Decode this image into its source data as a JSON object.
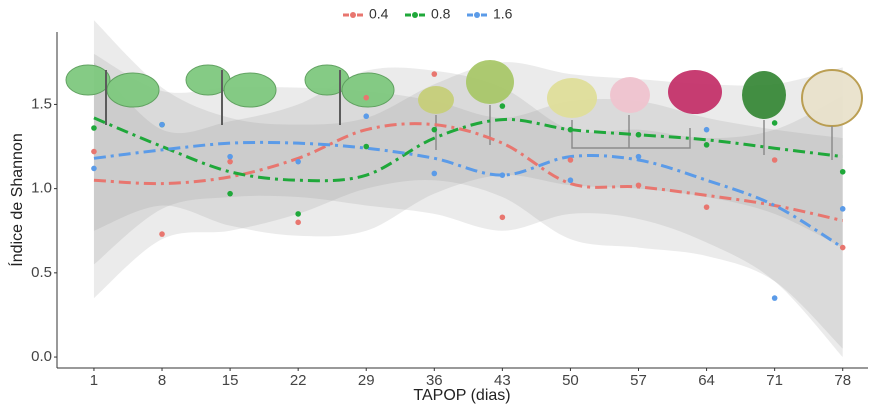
{
  "chart_data": {
    "type": "smooth-scatter",
    "x_label": "TAPOP (dias)",
    "y_label": "Índice de Shannon",
    "xlim": [
      -2.8,
      80.6
    ],
    "ylim": [
      -0.065,
      1.93
    ],
    "xticks": [
      1,
      8,
      15,
      22,
      29,
      36,
      43,
      50,
      57,
      64,
      71,
      78
    ],
    "yticks": [
      {
        "value": 0,
        "label": "0.0"
      },
      0.5,
      {
        "value": 1,
        "label": "1.0"
      },
      1.5
    ],
    "x": [
      1,
      8,
      15,
      22,
      29,
      36,
      43,
      50,
      57,
      64,
      71,
      78
    ],
    "series": [
      {
        "name": "0.4",
        "color": "#e8766f",
        "values": [
          1.22,
          0.73,
          1.16,
          0.8,
          1.54,
          1.68,
          0.83,
          1.17,
          1.02,
          0.89,
          1.17,
          0.65
        ],
        "fit": [
          1.05,
          1.03,
          1.07,
          1.18,
          1.35,
          1.38,
          1.27,
          1.03,
          1.01,
          0.96,
          0.9,
          0.81
        ],
        "lower": [
          0.35,
          0.7,
          0.75,
          0.85,
          1.0,
          1.05,
          0.95,
          0.7,
          0.65,
          0.6,
          0.45,
          0.05
        ],
        "upper": [
          1.75,
          1.35,
          1.4,
          1.5,
          1.7,
          1.7,
          1.6,
          1.35,
          1.35,
          1.3,
          1.35,
          1.55
        ]
      },
      {
        "name": "0.8",
        "color": "#1fa83a",
        "values": [
          1.36,
          1.38,
          0.97,
          0.85,
          1.25,
          1.35,
          1.49,
          1.35,
          1.32,
          1.26,
          1.39,
          1.1
        ],
        "fit": [
          1.42,
          1.25,
          1.1,
          1.05,
          1.08,
          1.3,
          1.41,
          1.35,
          1.32,
          1.29,
          1.24,
          1.19
        ],
        "lower": [
          0.75,
          0.9,
          0.78,
          0.72,
          0.75,
          0.97,
          1.08,
          1.02,
          1.0,
          0.95,
          0.85,
          0.65
        ],
        "upper": [
          2.0,
          1.6,
          1.42,
          1.38,
          1.42,
          1.62,
          1.75,
          1.68,
          1.65,
          1.62,
          1.62,
          1.72
        ]
      },
      {
        "name": "1.6",
        "color": "#5b9be8",
        "values": [
          1.12,
          1.38,
          1.19,
          1.16,
          1.43,
          1.09,
          1.08,
          1.05,
          1.19,
          1.35,
          0.35,
          0.88
        ],
        "fit": [
          1.18,
          1.23,
          1.27,
          1.27,
          1.24,
          1.18,
          1.08,
          1.19,
          1.17,
          1.05,
          0.9,
          0.65
        ],
        "lower": [
          0.55,
          0.88,
          0.95,
          0.95,
          0.9,
          0.85,
          0.75,
          0.85,
          0.82,
          0.68,
          0.45,
          0.0
        ],
        "upper": [
          1.8,
          1.58,
          1.6,
          1.6,
          1.58,
          1.52,
          1.42,
          1.52,
          1.52,
          1.42,
          1.35,
          1.3
        ]
      }
    ]
  }
}
